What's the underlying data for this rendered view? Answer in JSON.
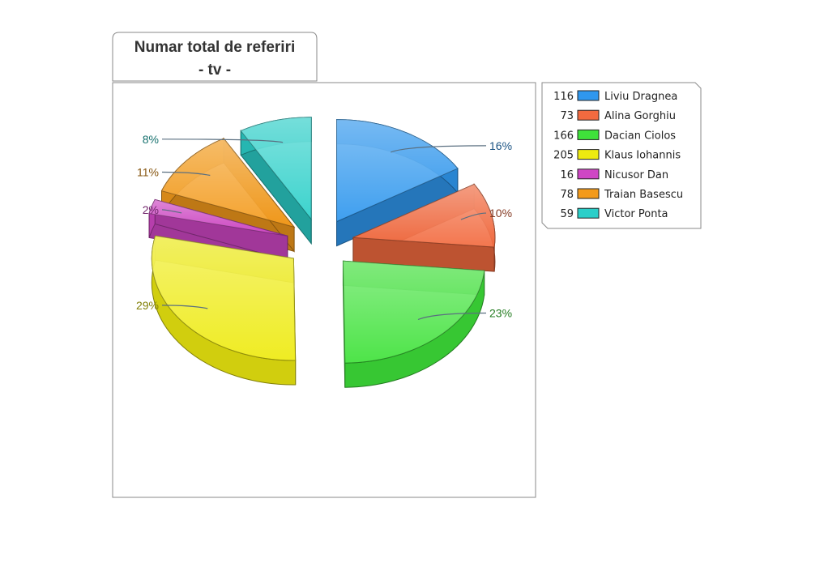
{
  "chart_data": {
    "type": "pie",
    "title_lines": [
      "Numar total de referiri",
      "- tv -"
    ],
    "series": [
      {
        "name": "Liviu Dragnea",
        "value": 116,
        "percent_label": "16%",
        "color": "#2f97ee"
      },
      {
        "name": "Alina Gorghiu",
        "value": 73,
        "percent_label": "10%",
        "color": "#f26a3f"
      },
      {
        "name": "Dacian Ciolos",
        "value": 166,
        "percent_label": "23%",
        "color": "#3fe23a"
      },
      {
        "name": "Klaus Iohannis",
        "value": 205,
        "percent_label": "29%",
        "color": "#eeea10"
      },
      {
        "name": "Nicusor Dan",
        "value": 16,
        "percent_label": "2%",
        "color": "#cf46c4"
      },
      {
        "name": "Traian Basescu",
        "value": 78,
        "percent_label": "11%",
        "color": "#f39a1b"
      },
      {
        "name": "Victor Ponta",
        "value": 59,
        "percent_label": "8%",
        "color": "#2bcfc9"
      }
    ],
    "legend_position": "right",
    "style": "exploded-3d"
  }
}
